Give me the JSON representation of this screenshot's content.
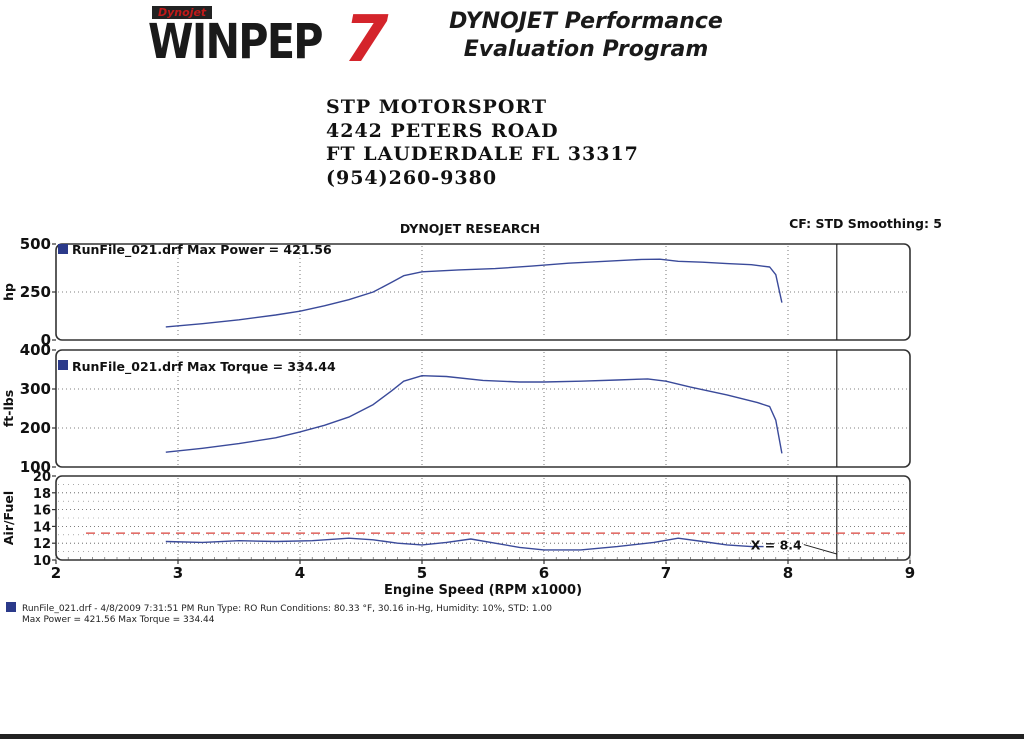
{
  "header": {
    "logo_small": "Dynojet",
    "logo_main": "WINPEP",
    "logo_seven": "7",
    "program_line1": "DYNOJET Performance",
    "program_line2": "Evaluation Program"
  },
  "address": {
    "line1": "STP MOTORSPORT",
    "line2": "4242 PETERS ROAD",
    "line3": "FT LAUDERDALE FL 33317",
    "line4": "(954)260-9380"
  },
  "chart_title": "DYNOJET RESEARCH",
  "cf_info": "CF: STD  Smoothing: 5",
  "footer": {
    "line1": "RunFile_021.drf - 4/8/2009 7:31:51 PM  Run Type: RO  Run Conditions: 80.33 °F, 30.16 in-Hg,  Humidity:  10%, STD: 1.00",
    "line2": "Max Power = 421.56  Max Torque = 334.44"
  },
  "colors": {
    "curve": "#3a4a9a",
    "afr_ref": "#d9403a",
    "frame": "#333333",
    "legend_square": "#2b3a8a"
  },
  "chart_data": [
    {
      "type": "line",
      "panel": "power",
      "ylabel": "hp",
      "ylim": [
        0,
        500
      ],
      "yticks": [
        0,
        250,
        500
      ],
      "xlim": [
        2,
        9
      ],
      "legend": "RunFile_021.drf Max Power = 421.56",
      "cursor_x": 8.4,
      "grid": true,
      "series": [
        {
          "name": "RunFile_021.drf",
          "x": [
            2.9,
            3.2,
            3.5,
            3.8,
            4.0,
            4.2,
            4.4,
            4.6,
            4.75,
            4.85,
            5.0,
            5.3,
            5.6,
            5.9,
            6.2,
            6.5,
            6.8,
            6.95,
            7.1,
            7.3,
            7.5,
            7.7,
            7.85,
            7.9,
            7.95
          ],
          "y": [
            68,
            85,
            105,
            130,
            150,
            178,
            210,
            250,
            300,
            335,
            355,
            365,
            372,
            385,
            400,
            410,
            420,
            421,
            410,
            405,
            398,
            392,
            380,
            340,
            195
          ]
        }
      ]
    },
    {
      "type": "line",
      "panel": "torque",
      "ylabel": "ft-lbs",
      "ylim": [
        100,
        400
      ],
      "yticks": [
        100,
        200,
        300,
        400
      ],
      "xlim": [
        2,
        9
      ],
      "legend": "RunFile_021.drf Max Torque = 334.44",
      "cursor_x": 8.4,
      "grid": true,
      "series": [
        {
          "name": "RunFile_021.drf",
          "x": [
            2.9,
            3.2,
            3.5,
            3.8,
            4.0,
            4.2,
            4.4,
            4.6,
            4.75,
            4.85,
            5.0,
            5.2,
            5.5,
            5.8,
            6.0,
            6.3,
            6.6,
            6.85,
            7.0,
            7.2,
            7.5,
            7.75,
            7.85,
            7.9,
            7.95
          ],
          "y": [
            138,
            148,
            160,
            175,
            190,
            207,
            228,
            260,
            295,
            320,
            334,
            332,
            322,
            318,
            318,
            320,
            323,
            326,
            320,
            305,
            285,
            265,
            255,
            220,
            135
          ]
        }
      ]
    },
    {
      "type": "line",
      "panel": "afr",
      "ylabel": "Air/Fuel",
      "ylim": [
        10,
        20
      ],
      "yticks": [
        10,
        12,
        14,
        16,
        18,
        20
      ],
      "xlim": [
        2,
        9
      ],
      "xticks": [
        2,
        3,
        4,
        5,
        6,
        7,
        8,
        9
      ],
      "xlabel": "Engine Speed (RPM x1000)",
      "reference_y": 13.2,
      "cursor_x": 8.4,
      "cursor_label": "X = 8.4",
      "grid": true,
      "series": [
        {
          "name": "RunFile_021.drf",
          "x": [
            2.9,
            3.2,
            3.5,
            3.8,
            4.1,
            4.4,
            4.6,
            4.8,
            5.0,
            5.2,
            5.4,
            5.6,
            5.8,
            6.0,
            6.3,
            6.6,
            6.9,
            7.1,
            7.3,
            7.5,
            7.7,
            7.8
          ],
          "y": [
            12.2,
            12.1,
            12.3,
            12.2,
            12.3,
            12.6,
            12.4,
            12.0,
            11.8,
            12.1,
            12.5,
            12.0,
            11.5,
            11.2,
            11.2,
            11.6,
            12.1,
            12.6,
            12.2,
            11.8,
            11.6,
            11.6
          ]
        }
      ]
    }
  ]
}
